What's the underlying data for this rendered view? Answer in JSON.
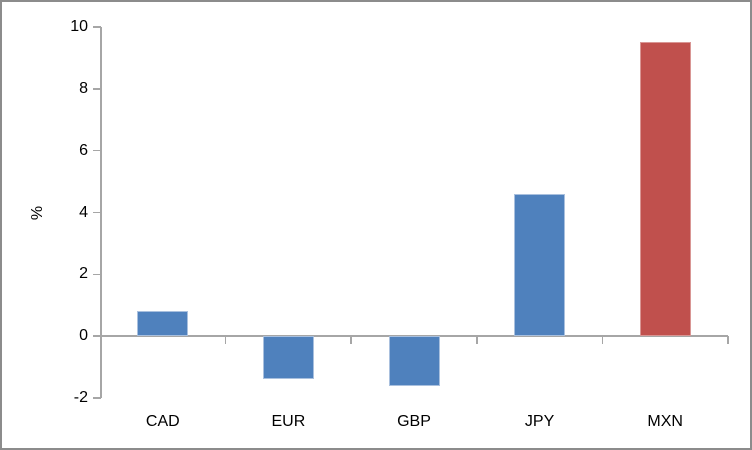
{
  "chart_data": {
    "type": "bar",
    "title": "",
    "xlabel": "",
    "ylabel": "%",
    "categories": [
      "CAD",
      "EUR",
      "GBP",
      "JPY",
      "MXN"
    ],
    "values": [
      0.8,
      -1.4,
      -1.6,
      4.6,
      9.5
    ],
    "bar_colors": [
      "#4F81BD",
      "#4F81BD",
      "#4F81BD",
      "#4F81BD",
      "#C0504D"
    ],
    "bar_border_colors": [
      "#A9C0DE",
      "#A9C0DE",
      "#A9C0DE",
      "#A9C0DE",
      "#D99694"
    ],
    "yticks": [
      10,
      8,
      6,
      4,
      2,
      0,
      -2
    ],
    "ylim": [
      -2,
      10
    ],
    "grid": false,
    "legend": "none",
    "axis_color": "#A6A6A6",
    "text_color": "#000000",
    "accent_blue": "#4F81BD",
    "accent_red": "#C0504D"
  }
}
